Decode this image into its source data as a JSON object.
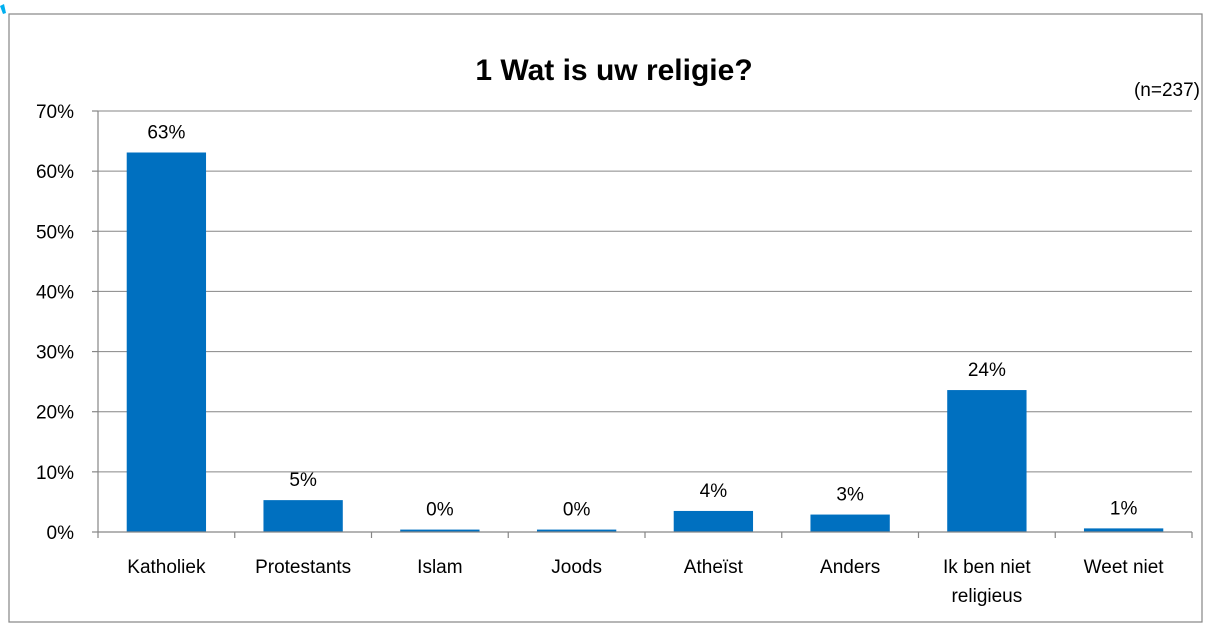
{
  "chart_data": {
    "type": "bar",
    "title": "1 Wat is uw religie?",
    "note": "(n=237)",
    "categories": [
      [
        "Katholiek"
      ],
      [
        "Protestants"
      ],
      [
        "Islam"
      ],
      [
        "Joods"
      ],
      [
        "Atheïst"
      ],
      [
        "Anders"
      ],
      [
        "Ik ben niet",
        "religieus"
      ],
      [
        "Weet niet"
      ]
    ],
    "values": [
      63.1,
      5.3,
      0.4,
      0.4,
      3.5,
      2.9,
      23.6,
      0.6
    ],
    "data_labels": [
      "63%",
      "5%",
      "0%",
      "0%",
      "4%",
      "3%",
      "24%",
      "1%"
    ],
    "yticks": [
      "0%",
      "10%",
      "20%",
      "30%",
      "40%",
      "50%",
      "60%",
      "70%"
    ],
    "ylim": [
      0,
      70
    ],
    "xlabel": "",
    "ylabel": "",
    "grid": true,
    "legend": "none",
    "bar_color": "#0070C0",
    "frame_color": "#868686",
    "header_accent": "#00B0F0"
  }
}
